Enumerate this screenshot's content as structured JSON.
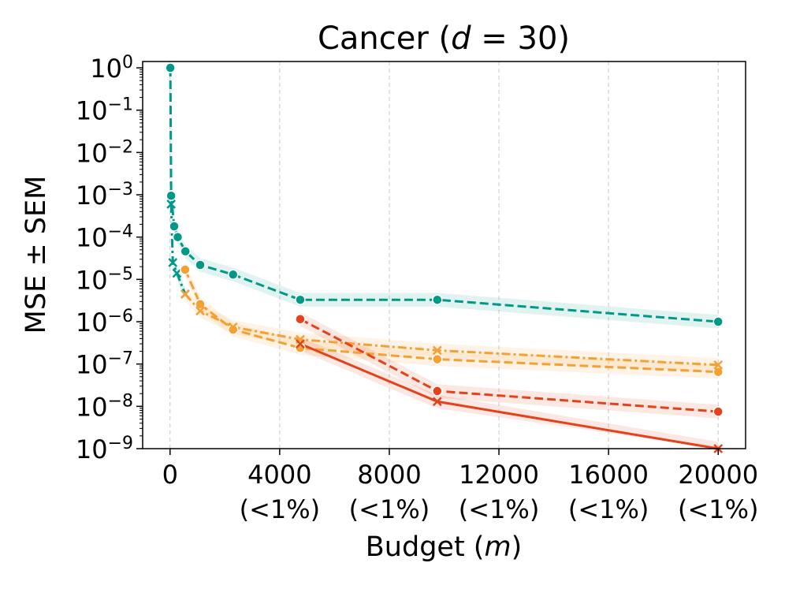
{
  "chart_data": {
    "type": "line",
    "title": {
      "pre": "Cancer (",
      "var": "d",
      "post": " = 30)"
    },
    "xlabel": {
      "pre": "Budget (",
      "var": "m",
      "post": ")"
    },
    "ylabel": "MSE ± SEM",
    "xlim": [
      -1000,
      21000
    ],
    "ylim_log10": [
      -9,
      0.15
    ],
    "yscale": "log",
    "x_ticks": [
      {
        "value": 0,
        "label": "0",
        "sublabel": ""
      },
      {
        "value": 4000,
        "label": "4000",
        "sublabel": "(<1%)"
      },
      {
        "value": 8000,
        "label": "8000",
        "sublabel": "(<1%)"
      },
      {
        "value": 12000,
        "label": "12000",
        "sublabel": "(<1%)"
      },
      {
        "value": 16000,
        "label": "16000",
        "sublabel": "(<1%)"
      },
      {
        "value": 20000,
        "label": "20000",
        "sublabel": "(<1%)"
      }
    ],
    "y_ticks": [
      {
        "exp": 0,
        "base": "10",
        "sup": "0"
      },
      {
        "exp": -1,
        "base": "10",
        "sup": "−1"
      },
      {
        "exp": -2,
        "base": "10",
        "sup": "−2"
      },
      {
        "exp": -3,
        "base": "10",
        "sup": "−3"
      },
      {
        "exp": -4,
        "base": "10",
        "sup": "−4"
      },
      {
        "exp": -5,
        "base": "10",
        "sup": "−5"
      },
      {
        "exp": -6,
        "base": "10",
        "sup": "−6"
      },
      {
        "exp": -7,
        "base": "10",
        "sup": "−7"
      },
      {
        "exp": -8,
        "base": "10",
        "sup": "−8"
      },
      {
        "exp": -9,
        "base": "10",
        "sup": "−9"
      }
    ],
    "grid": "x-dashed",
    "series": [
      {
        "name": "teal-dashed-circle",
        "color": "#009988",
        "dash": "dashed",
        "marker": "circle",
        "x": [
          10,
          40,
          150,
          280,
          560,
          1100,
          2300,
          4750,
          9750,
          20000
        ],
        "y": [
          1.0,
          0.00095,
          0.00018,
          0.0001,
          4.6e-05,
          2.2e-05,
          1.3e-05,
          3.3e-06,
          3.3e-06,
          1e-06
        ]
      },
      {
        "name": "teal-dashdot-cross",
        "color": "#009988",
        "dash": "dashdot",
        "marker": "x",
        "x": [
          40,
          100,
          250,
          550
        ],
        "y": [
          0.0006,
          2.5e-05,
          1.4e-05,
          4.5e-06
        ]
      },
      {
        "name": "orange-dashed-circle",
        "color": "#F5A033",
        "dash": "dashed",
        "marker": "circle",
        "x": [
          550,
          1100,
          2300,
          4750,
          9750,
          20000
        ],
        "y": [
          1.7e-05,
          2.6e-06,
          6.5e-07,
          2.4e-07,
          1.3e-07,
          6.5e-08
        ]
      },
      {
        "name": "orange-dashdot-cross",
        "color": "#F5A033",
        "dash": "dashdot",
        "marker": "x",
        "x": [
          550,
          1100,
          2300,
          4750,
          9750,
          20000
        ],
        "y": [
          4.5e-06,
          1.8e-06,
          7.5e-07,
          3.8e-07,
          2.1e-07,
          9.5e-08
        ]
      },
      {
        "name": "red-dashed-circle",
        "color": "#E2431C",
        "dash": "dashed",
        "marker": "circle",
        "x": [
          4750,
          9750,
          20000
        ],
        "y": [
          1.15e-06,
          2.3e-08,
          7.5e-09
        ]
      },
      {
        "name": "red-solid-cross",
        "color": "#E2431C",
        "dash": "solid",
        "marker": "x",
        "x": [
          4750,
          9750,
          20000
        ],
        "y": [
          3e-07,
          1.3e-08,
          1e-09
        ]
      }
    ]
  }
}
